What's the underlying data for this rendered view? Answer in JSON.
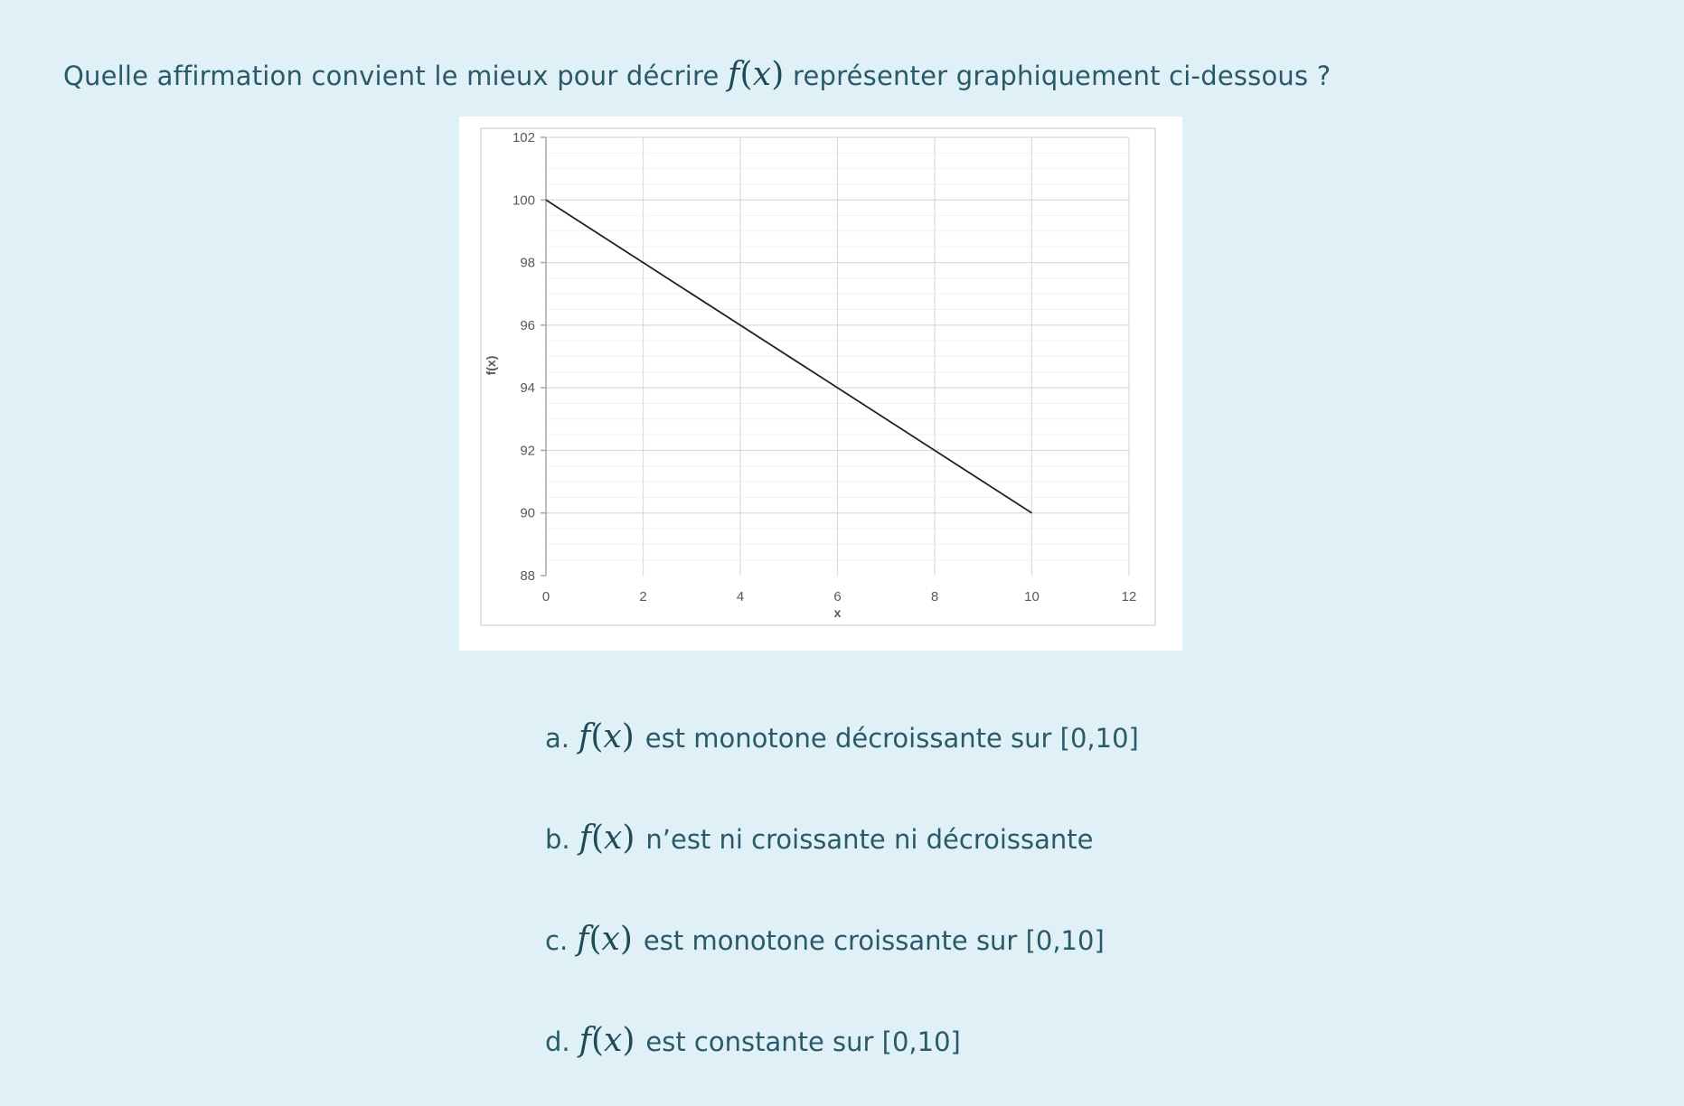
{
  "question": {
    "before": "Quelle affirmation convient le mieux pour décrire",
    "func": "f",
    "var": "x",
    "after": "représenter graphiquement ci-dessous ?"
  },
  "options": [
    {
      "letter": "a.",
      "func": "f",
      "var": "x",
      "text": "est monotone décroissante sur [0,10]"
    },
    {
      "letter": "b.",
      "func": "f",
      "var": "x",
      "text": "n’est ni croissante ni décroissante"
    },
    {
      "letter": "c.",
      "func": "f",
      "var": "x",
      "text": "est monotone croissante sur [0,10]"
    },
    {
      "letter": "d.",
      "func": "f",
      "var": "x",
      "text": "est constante sur [0,10]"
    }
  ],
  "chart_data": {
    "type": "line",
    "title": "",
    "xlabel": "x",
    "ylabel": "f(x)",
    "xlim": [
      0,
      12
    ],
    "ylim": [
      88,
      102
    ],
    "xticks": [
      0,
      2,
      4,
      6,
      8,
      10,
      12
    ],
    "yticks": [
      88,
      90,
      92,
      94,
      96,
      98,
      100,
      102
    ],
    "grid": true,
    "series": [
      {
        "x": [
          0,
          10
        ],
        "y": [
          100,
          90
        ],
        "color": "#222222"
      }
    ]
  }
}
